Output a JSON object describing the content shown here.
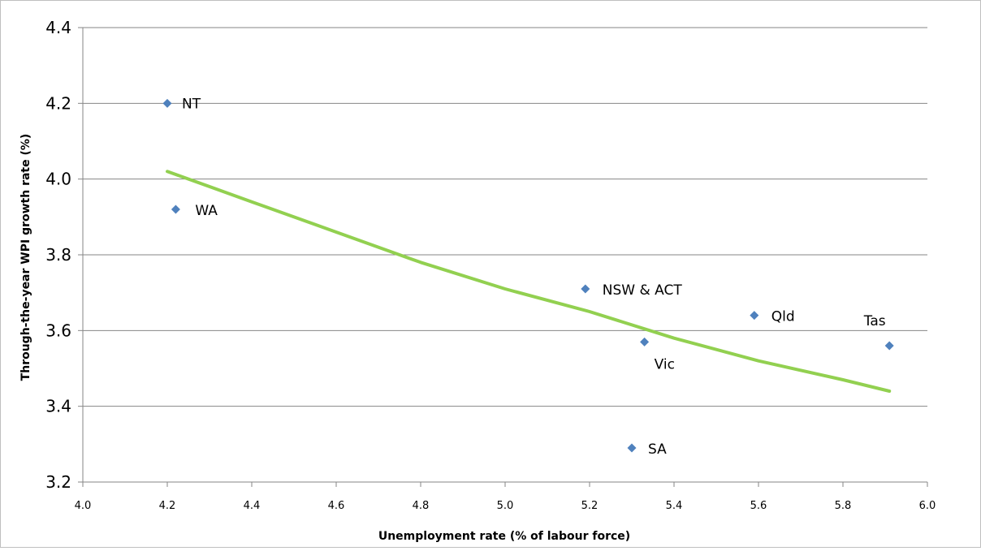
{
  "chart_data": {
    "type": "scatter",
    "title": "",
    "xlabel": "Unemployment rate (% of labour force)",
    "ylabel": "Through-the-year WPI growth rate (%)",
    "xlim": [
      4.0,
      6.0
    ],
    "ylim": [
      3.2,
      4.4
    ],
    "x_ticks": [
      "4.0",
      "4.2",
      "4.4",
      "4.6",
      "4.8",
      "5.0",
      "5.2",
      "5.4",
      "5.6",
      "5.8",
      "6.0"
    ],
    "y_ticks": [
      "3.2",
      "3.4",
      "3.6",
      "3.8",
      "4.0",
      "4.2",
      "4.4"
    ],
    "grid": "horizontal",
    "legend": "none",
    "colors": {
      "points": "#4f81bd",
      "trendline": "#92d050",
      "gridlines": "#868686"
    },
    "points": [
      {
        "label": "NT",
        "x": 4.2,
        "y": 4.2
      },
      {
        "label": "WA",
        "x": 4.22,
        "y": 3.92
      },
      {
        "label": "NSW & ACT",
        "x": 5.19,
        "y": 3.71
      },
      {
        "label": "Qld",
        "x": 5.59,
        "y": 3.64
      },
      {
        "label": "Tas",
        "x": 5.91,
        "y": 3.56
      },
      {
        "label": "Vic",
        "x": 5.33,
        "y": 3.57
      },
      {
        "label": "SA",
        "x": 5.3,
        "y": 3.29
      }
    ],
    "trendline": {
      "type": "logarithmic",
      "x": [
        4.2,
        4.4,
        4.6,
        4.8,
        5.0,
        5.2,
        5.4,
        5.6,
        5.8,
        5.91
      ],
      "y": [
        4.02,
        3.94,
        3.86,
        3.78,
        3.71,
        3.65,
        3.58,
        3.52,
        3.47,
        3.44
      ]
    }
  }
}
